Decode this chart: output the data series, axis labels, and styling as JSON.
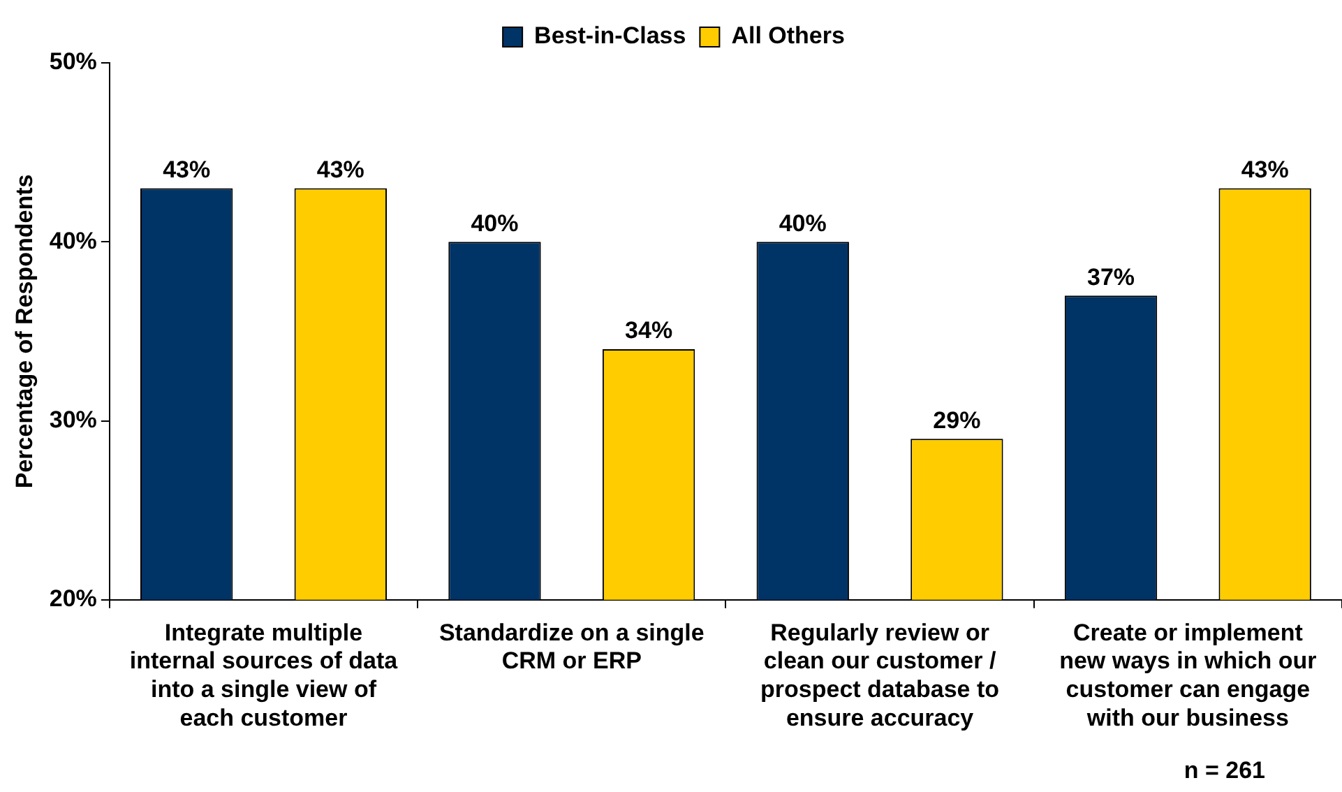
{
  "chart_data": {
    "type": "bar",
    "ylabel": "Percentage of Respondents",
    "categories": [
      "Integrate multiple internal sources of data into a single view of each customer",
      "Standardize on a single CRM or ERP",
      "Regularly review or clean our customer / prospect database to ensure accuracy",
      "Create or implement new ways in which our customer can engage with our business"
    ],
    "series": [
      {
        "name": "Best-in-Class",
        "color": "#003366",
        "values": [
          43,
          40,
          40,
          37
        ],
        "value_labels": [
          "43%",
          "40%",
          "40%",
          "37%"
        ]
      },
      {
        "name": "All Others",
        "color": "#ffcc00",
        "values": [
          43,
          34,
          29,
          43
        ],
        "value_labels": [
          "43%",
          "34%",
          "29%",
          "43%"
        ]
      }
    ],
    "ylim": [
      20,
      50
    ],
    "yticks": [
      {
        "value": 20,
        "label": "20%"
      },
      {
        "value": 30,
        "label": "30%"
      },
      {
        "value": 40,
        "label": "40%"
      },
      {
        "value": 50,
        "label": "50%"
      }
    ],
    "grid": false,
    "legend": "top",
    "annotations": [
      "n = 261"
    ]
  }
}
